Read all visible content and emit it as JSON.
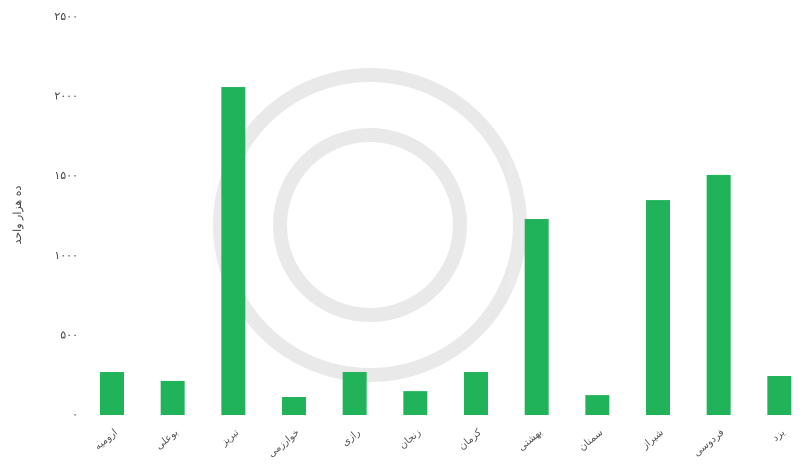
{
  "chart_data": {
    "type": "bar",
    "y_axis_label": "ده هزار واحد",
    "categories": [
      "ارومیه",
      "بوعلی",
      "تبریز",
      "خوارزمی",
      "رازی",
      "زنجان",
      "کرمان",
      "بهشتی",
      "سمنان",
      "شیراز",
      "فردوسی",
      "یزد"
    ],
    "values": [
      270,
      214,
      2060,
      113,
      270,
      150,
      270,
      1231,
      125,
      1350,
      1508,
      245
    ],
    "color": "#21b35a",
    "ylim": [
      0,
      2500
    ],
    "yticks": [
      {
        "value": 0,
        "label": "۰"
      },
      {
        "value": 500,
        "label": "۵۰۰"
      },
      {
        "value": 1000,
        "label": "۱۰۰۰"
      },
      {
        "value": 1500,
        "label": "۱۵۰۰"
      },
      {
        "value": 2000,
        "label": "۲۰۰۰"
      },
      {
        "value": 2500,
        "label": "۲۵۰۰"
      }
    ]
  }
}
